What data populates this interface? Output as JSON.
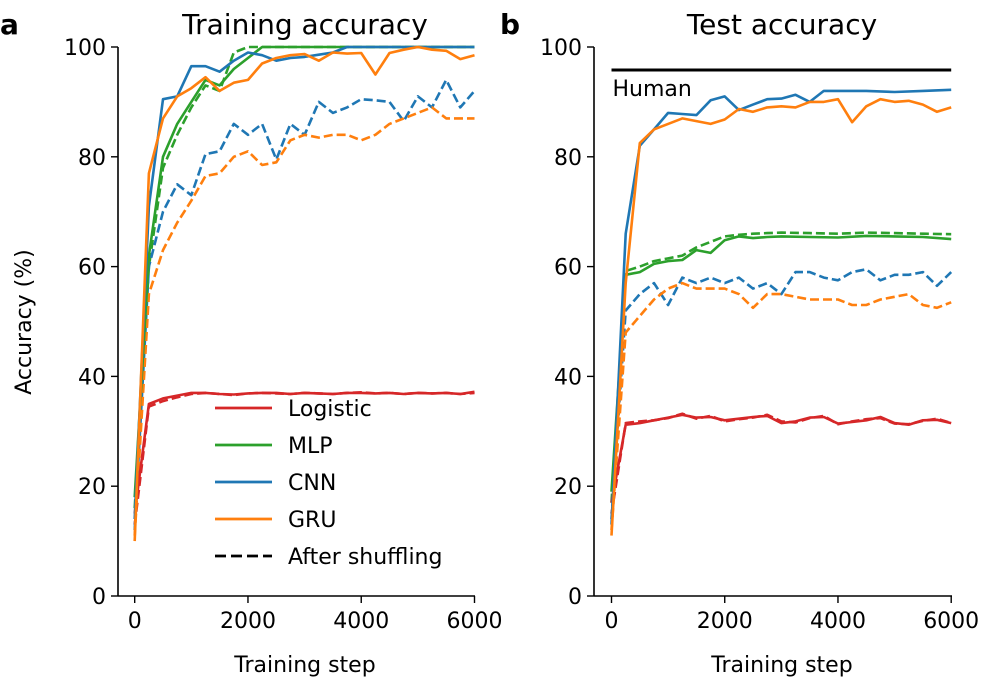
{
  "colors": {
    "logistic": "#d62728",
    "mlp": "#2ca02c",
    "cnn": "#1f77b4",
    "gru": "#ff7f0e",
    "axis": "#000000",
    "human": "#000000"
  },
  "chart_data": [
    {
      "type": "line",
      "panel_label": "a",
      "title": "Training accuracy",
      "xlabel": "Training step",
      "ylabel": "Accuracy (%)",
      "xlim": [
        -300,
        6000
      ],
      "ylim": [
        0,
        100
      ],
      "xticks": [
        0,
        2000,
        4000,
        6000
      ],
      "yticks": [
        0,
        20,
        40,
        60,
        80,
        100
      ],
      "legend": {
        "location": "lower-center",
        "entries": [
          {
            "label": "Logistic",
            "series": "logistic",
            "style": "solid"
          },
          {
            "label": "MLP",
            "series": "mlp",
            "style": "solid"
          },
          {
            "label": "CNN",
            "series": "cnn",
            "style": "solid"
          },
          {
            "label": "GRU",
            "series": "gru",
            "style": "solid"
          },
          {
            "label": "After shuffling",
            "series": "axis",
            "style": "dashed"
          }
        ]
      },
      "series": [
        {
          "name": "Logistic",
          "key": "logistic",
          "style": "solid",
          "x": [
            0,
            250,
            500,
            750,
            1000,
            1250,
            1500,
            1750,
            2000,
            2250,
            2500,
            2750,
            3000,
            3250,
            3500,
            3750,
            4000,
            4250,
            4500,
            4750,
            5000,
            5250,
            5500,
            5750,
            6000
          ],
          "y": [
            15,
            35,
            36,
            36.5,
            37,
            37,
            36.8,
            36.7,
            36.9,
            37,
            37,
            36.8,
            37,
            36.9,
            36.8,
            37,
            37,
            36.9,
            37,
            36.8,
            37,
            36.9,
            37,
            36.8,
            37.2
          ]
        },
        {
          "name": "Logistic (after shuffling)",
          "key": "logistic",
          "style": "dashed",
          "x": [
            0,
            250,
            500,
            750,
            1000,
            1250,
            1500,
            1750,
            2000,
            2250,
            2500,
            2750,
            3000,
            3250,
            3500,
            3750,
            4000,
            4250,
            4500,
            4750,
            5000,
            5250,
            5500,
            5750,
            6000
          ],
          "y": [
            13,
            34.5,
            35.5,
            36.2,
            36.8,
            37,
            36.8,
            36.6,
            36.9,
            37,
            36.9,
            36.8,
            37,
            36.9,
            36.8,
            37,
            37.1,
            36.9,
            37,
            36.8,
            37,
            36.9,
            37,
            36.8,
            37
          ]
        },
        {
          "name": "MLP",
          "key": "mlp",
          "style": "solid",
          "x": [
            0,
            250,
            500,
            750,
            1000,
            1250,
            1500,
            1750,
            2000,
            2250,
            2500,
            3000,
            3500,
            4000,
            4500,
            5000,
            5500,
            6000
          ],
          "y": [
            18,
            62,
            80,
            86,
            90,
            94,
            93,
            96,
            98,
            100,
            100,
            100,
            100,
            100,
            100,
            100,
            100,
            100
          ]
        },
        {
          "name": "MLP (after shuffling)",
          "key": "mlp",
          "style": "dashed",
          "x": [
            0,
            250,
            500,
            750,
            1000,
            1250,
            1500,
            1750,
            2000,
            2250,
            2500,
            3000,
            3500,
            4000,
            4500,
            5000,
            5500,
            6000
          ],
          "y": [
            16,
            60,
            78,
            84,
            89,
            93,
            92,
            99,
            100,
            100,
            100,
            100,
            100,
            100,
            100,
            100,
            100,
            100
          ]
        },
        {
          "name": "CNN",
          "key": "cnn",
          "style": "solid",
          "x": [
            0,
            250,
            500,
            750,
            1000,
            1250,
            1500,
            1750,
            2000,
            2250,
            2500,
            2750,
            3000,
            3250,
            3500,
            3750,
            4000,
            4500,
            5000,
            5500,
            6000
          ],
          "y": [
            14,
            71,
            90.5,
            91,
            96.5,
            96.5,
            95.5,
            97.5,
            99,
            98.5,
            97.5,
            98,
            98.2,
            98.6,
            99,
            100,
            100,
            100,
            100,
            100,
            100
          ]
        },
        {
          "name": "CNN (after shuffling)",
          "key": "cnn",
          "style": "dashed",
          "x": [
            0,
            250,
            500,
            750,
            1000,
            1250,
            1500,
            1750,
            2000,
            2250,
            2500,
            2750,
            3000,
            3250,
            3500,
            3750,
            4000,
            4250,
            4500,
            4750,
            5000,
            5250,
            5500,
            5750,
            6000
          ],
          "y": [
            12,
            60,
            70,
            75,
            73,
            80.5,
            81,
            86,
            84,
            86,
            79.5,
            86,
            84,
            90,
            88,
            89,
            90.5,
            90.3,
            90,
            86.5,
            91,
            89,
            94,
            89,
            92
          ]
        },
        {
          "name": "GRU",
          "key": "gru",
          "style": "solid",
          "x": [
            0,
            250,
            500,
            750,
            1000,
            1250,
            1500,
            1750,
            2000,
            2250,
            2500,
            2750,
            3000,
            3250,
            3500,
            3750,
            4000,
            4250,
            4500,
            4750,
            5000,
            5250,
            5500,
            5750,
            6000
          ],
          "y": [
            10,
            77,
            87,
            91,
            92.5,
            94.5,
            92,
            93.5,
            94,
            97,
            98,
            98.5,
            98.7,
            97.5,
            99,
            98.8,
            98.9,
            95,
            98.9,
            99.5,
            100,
            99.5,
            99.3,
            97.8,
            98.5
          ]
        },
        {
          "name": "GRU (after shuffling)",
          "key": "gru",
          "style": "dashed",
          "x": [
            0,
            250,
            500,
            750,
            1000,
            1250,
            1500,
            1750,
            2000,
            2250,
            2500,
            2750,
            3000,
            3250,
            3500,
            3750,
            4000,
            4250,
            4500,
            4750,
            5000,
            5250,
            5500,
            5750,
            6000
          ],
          "y": [
            11,
            55,
            63,
            68,
            72,
            76.5,
            77,
            80,
            81,
            78.5,
            79,
            83,
            84,
            83.5,
            84,
            84,
            83,
            84,
            86,
            87,
            88,
            89,
            87,
            87,
            87
          ]
        }
      ]
    },
    {
      "type": "line",
      "panel_label": "b",
      "title": "Test accuracy",
      "xlabel": "Training step",
      "ylabel": "",
      "xlim": [
        -300,
        6000
      ],
      "ylim": [
        0,
        100
      ],
      "xticks": [
        0,
        2000,
        4000,
        6000
      ],
      "yticks": [
        0,
        20,
        40,
        60,
        80,
        100
      ],
      "reference_line": {
        "label": "Human",
        "y": 95.8,
        "x_range": [
          0,
          6000
        ]
      },
      "series": [
        {
          "name": "Logistic",
          "key": "logistic",
          "style": "solid",
          "x": [
            0,
            250,
            500,
            750,
            1000,
            1250,
            1500,
            1750,
            2000,
            2250,
            2500,
            2750,
            3000,
            3250,
            3500,
            3750,
            4000,
            4250,
            4500,
            4750,
            5000,
            5250,
            5500,
            5750,
            6000
          ],
          "y": [
            17,
            31.2,
            31.5,
            32,
            32.5,
            33,
            32.5,
            32.6,
            32,
            32.3,
            32.6,
            32.8,
            31.5,
            31.8,
            32.5,
            32.6,
            31.4,
            31.7,
            32,
            32.6,
            31.5,
            31.2,
            32,
            32.1,
            31.5
          ]
        },
        {
          "name": "Logistic (after shuffling)",
          "key": "logistic",
          "style": "dashed",
          "x": [
            0,
            250,
            500,
            750,
            1000,
            1250,
            1500,
            1750,
            2000,
            2250,
            2500,
            2750,
            3000,
            3250,
            3500,
            3750,
            4000,
            4250,
            4500,
            4750,
            5000,
            5250,
            5500,
            5750,
            6000
          ],
          "y": [
            15,
            31.5,
            31.8,
            32,
            32.4,
            33.2,
            32.3,
            32.8,
            31.8,
            32.2,
            32.5,
            33,
            31.8,
            31.6,
            32.4,
            32.8,
            31.3,
            31.8,
            32.2,
            32.4,
            31.4,
            31.3,
            31.9,
            32.3,
            31.5
          ]
        },
        {
          "name": "MLP",
          "key": "mlp",
          "style": "solid",
          "x": [
            0,
            250,
            500,
            750,
            1000,
            1250,
            1500,
            1750,
            2000,
            2250,
            2500,
            2750,
            3000,
            3500,
            4000,
            4500,
            5000,
            5500,
            6000
          ],
          "y": [
            19,
            58.5,
            59,
            60.5,
            61,
            61.2,
            63,
            62.5,
            64.8,
            65.5,
            65.2,
            65.4,
            65.5,
            65.4,
            65.3,
            65.6,
            65.5,
            65.4,
            65
          ]
        },
        {
          "name": "MLP (after shuffling)",
          "key": "mlp",
          "style": "dashed",
          "x": [
            0,
            250,
            500,
            750,
            1000,
            1250,
            1500,
            1750,
            2000,
            2250,
            2500,
            2750,
            3000,
            3500,
            4000,
            4500,
            5000,
            5500,
            6000
          ],
          "y": [
            17,
            59.2,
            60,
            61,
            61.5,
            62,
            63.5,
            64.5,
            65.5,
            65.8,
            66,
            66.1,
            66.2,
            66.1,
            66,
            66.2,
            66.1,
            66,
            65.9
          ]
        },
        {
          "name": "CNN",
          "key": "cnn",
          "style": "solid",
          "x": [
            0,
            250,
            500,
            750,
            1000,
            1250,
            1500,
            1750,
            2000,
            2250,
            2500,
            2750,
            3000,
            3250,
            3500,
            3750,
            4000,
            4250,
            4500,
            5000,
            5500,
            6000
          ],
          "y": [
            13,
            66,
            82,
            85,
            88,
            87.8,
            87.6,
            90.3,
            91,
            88.5,
            89.5,
            90.5,
            90.6,
            91.3,
            90,
            92,
            92,
            92,
            92,
            91.8,
            92,
            92.2
          ]
        },
        {
          "name": "CNN (after shuffling)",
          "key": "cnn",
          "style": "dashed",
          "x": [
            0,
            250,
            500,
            750,
            1000,
            1250,
            1500,
            1750,
            2000,
            2250,
            2500,
            2750,
            3000,
            3250,
            3500,
            3750,
            4000,
            4250,
            4500,
            4750,
            5000,
            5250,
            5500,
            5750,
            6000
          ],
          "y": [
            14,
            52,
            55,
            57,
            53,
            58,
            57,
            58,
            57,
            58,
            56,
            57,
            55,
            59,
            59,
            58,
            57.5,
            59,
            59.5,
            57.5,
            58.5,
            58.5,
            59,
            56.5,
            59
          ]
        },
        {
          "name": "GRU",
          "key": "gru",
          "style": "solid",
          "x": [
            0,
            250,
            500,
            750,
            1000,
            1250,
            1500,
            1750,
            2000,
            2250,
            2500,
            2750,
            3000,
            3250,
            3500,
            3750,
            4000,
            4250,
            4500,
            4750,
            5000,
            5250,
            5500,
            5750,
            6000
          ],
          "y": [
            11,
            57,
            82.5,
            85,
            86,
            87,
            86.5,
            86,
            86.8,
            88.7,
            88.2,
            89,
            89.2,
            89,
            90,
            90,
            90.5,
            86.3,
            89.2,
            90.5,
            90,
            90.2,
            89.5,
            88.2,
            89
          ]
        },
        {
          "name": "GRU (after shuffling)",
          "key": "gru",
          "style": "dashed",
          "x": [
            0,
            250,
            500,
            750,
            1000,
            1250,
            1500,
            1750,
            2000,
            2250,
            2500,
            2750,
            3000,
            3250,
            3500,
            3750,
            4000,
            4250,
            4500,
            4750,
            5000,
            5250,
            5500,
            5750,
            6000
          ],
          "y": [
            12,
            48,
            51,
            54,
            56,
            57,
            56,
            56,
            56,
            55,
            52.5,
            55,
            55,
            54.5,
            54,
            54,
            54,
            53,
            53,
            54,
            54.5,
            55,
            53,
            52.5,
            53.5
          ]
        }
      ]
    }
  ]
}
